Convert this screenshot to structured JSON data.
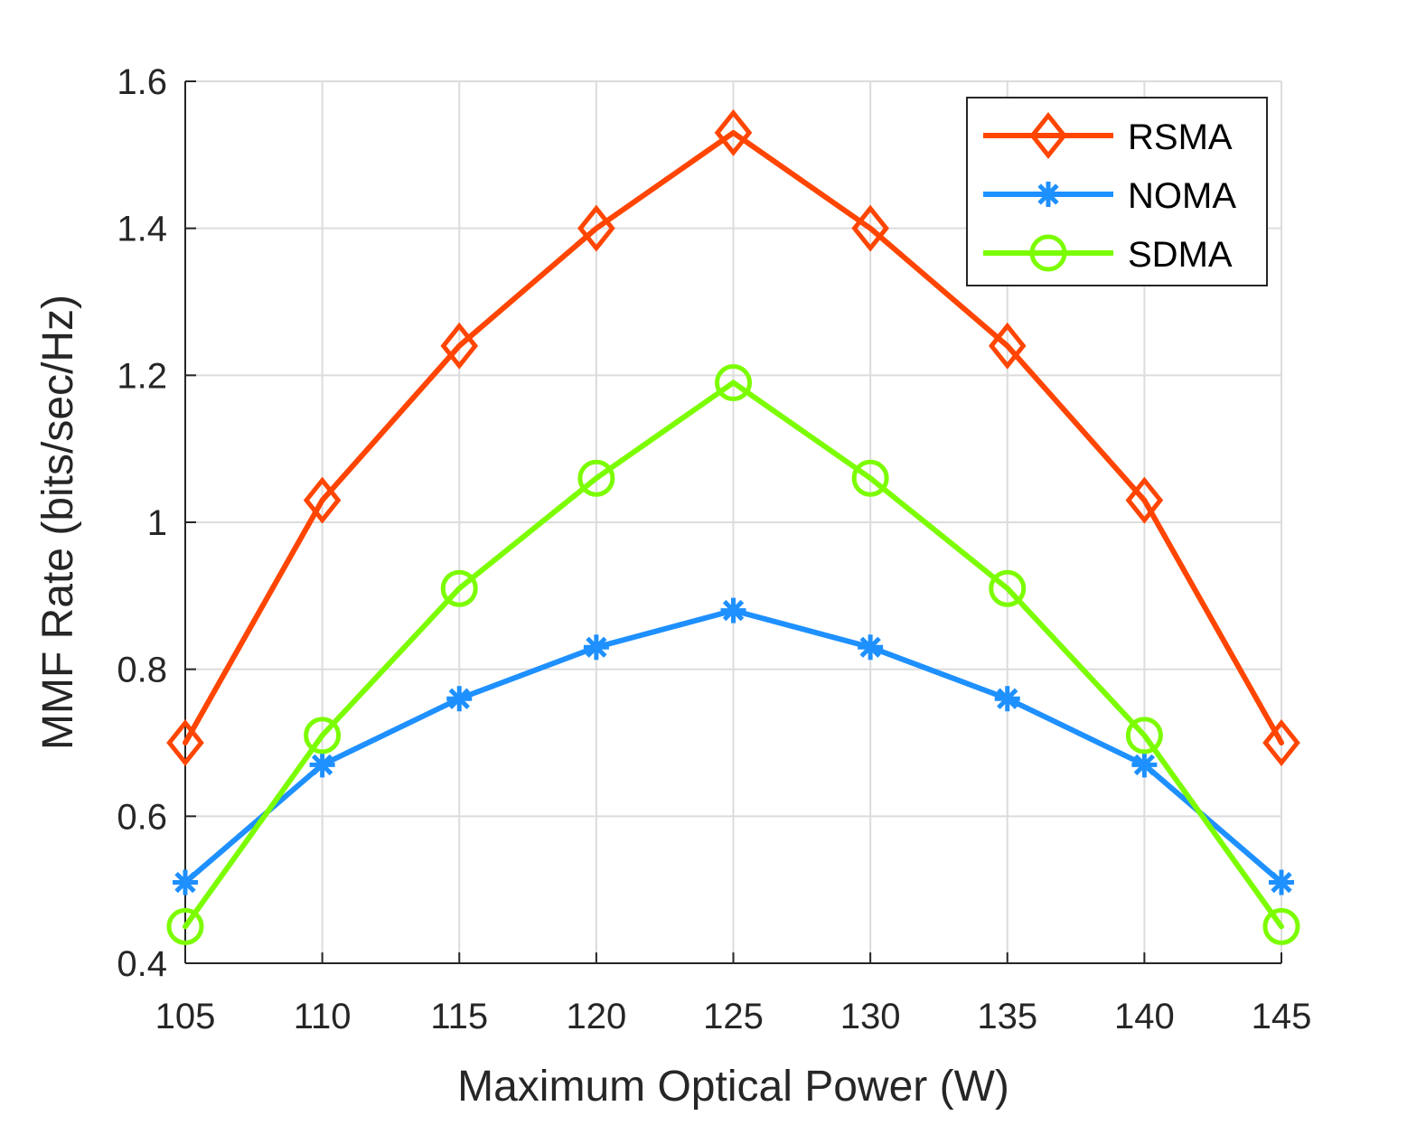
{
  "chart_data": {
    "type": "line",
    "title": "",
    "xlabel": "Maximum Optical Power (W)",
    "ylabel": "MMF Rate (bits/sec/Hz)",
    "x": [
      105,
      110,
      115,
      120,
      125,
      130,
      135,
      140,
      145
    ],
    "xlim": [
      105,
      145
    ],
    "ylim": [
      0.4,
      1.6
    ],
    "xticks": [
      105,
      110,
      115,
      120,
      125,
      130,
      135,
      140,
      145
    ],
    "yticks": [
      0.4,
      0.6,
      0.8,
      1,
      1.2,
      1.4,
      1.6
    ],
    "xtick_labels": [
      "105",
      "110",
      "115",
      "120",
      "125",
      "130",
      "135",
      "140",
      "145"
    ],
    "ytick_labels": [
      "0.4",
      "0.6",
      "0.8",
      "1",
      "1.2",
      "1.4",
      "1.6"
    ],
    "grid": true,
    "legend_position": "top-right",
    "series": [
      {
        "name": "RSMA",
        "color": "#FF4500",
        "marker": "diamond",
        "values": [
          0.7,
          1.03,
          1.24,
          1.4,
          1.53,
          1.4,
          1.24,
          1.03,
          0.7
        ]
      },
      {
        "name": "NOMA",
        "color": "#1E90FF",
        "marker": "asterisk",
        "values": [
          0.51,
          0.67,
          0.76,
          0.83,
          0.88,
          0.83,
          0.76,
          0.67,
          0.51
        ]
      },
      {
        "name": "SDMA",
        "color": "#7CFC00",
        "marker": "circle",
        "values": [
          0.45,
          0.71,
          0.91,
          1.06,
          1.19,
          1.06,
          0.91,
          0.71,
          0.45
        ]
      }
    ]
  }
}
